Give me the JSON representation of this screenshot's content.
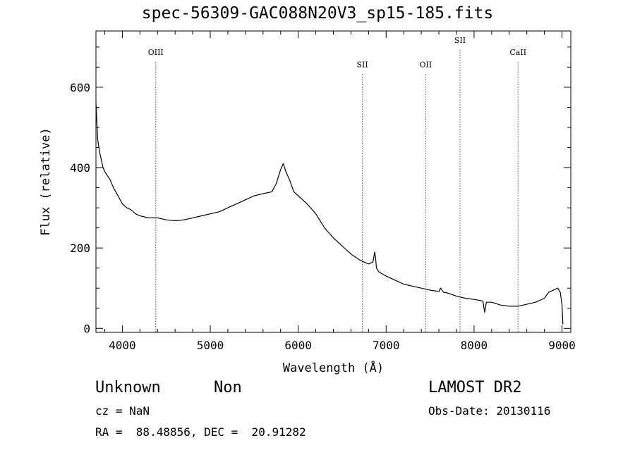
{
  "chart_data": {
    "type": "line",
    "title": "spec-56309-GAC088N20V3_sp15-185.fits",
    "xlabel": "Wavelength (Å)",
    "ylabel": "Flux (relative)",
    "xlim": [
      3700,
      9100
    ],
    "ylim": [
      -10,
      740
    ],
    "x_ticks": [
      4000,
      5000,
      6000,
      7000,
      8000,
      9000
    ],
    "y_ticks": [
      0,
      200,
      400,
      600
    ],
    "grid": false,
    "series": [
      {
        "color": "#000000",
        "x": [
          3700,
          3720,
          3740,
          3760,
          3780,
          3800,
          3830,
          3860,
          3900,
          3950,
          4000,
          4050,
          4100,
          4150,
          4200,
          4300,
          4400,
          4500,
          4600,
          4700,
          4800,
          4900,
          5000,
          5100,
          5200,
          5300,
          5400,
          5500,
          5600,
          5700,
          5750,
          5800,
          5830,
          5860,
          5900,
          5950,
          6000,
          6100,
          6200,
          6300,
          6400,
          6500,
          6600,
          6700,
          6800,
          6850,
          6870,
          6880,
          6890,
          6920,
          7000,
          7100,
          7200,
          7300,
          7400,
          7500,
          7600,
          7620,
          7650,
          7700,
          7800,
          7900,
          8000,
          8100,
          8120,
          8140,
          8200,
          8300,
          8400,
          8500,
          8600,
          8700,
          8800,
          8850,
          8900,
          8950,
          8980,
          9000,
          9010
        ],
        "y": [
          560,
          470,
          440,
          420,
          400,
          390,
          380,
          370,
          350,
          330,
          310,
          300,
          295,
          285,
          280,
          275,
          275,
          270,
          268,
          270,
          275,
          280,
          285,
          290,
          300,
          310,
          320,
          330,
          335,
          340,
          360,
          395,
          410,
          390,
          370,
          340,
          330,
          310,
          285,
          250,
          225,
          205,
          185,
          170,
          160,
          165,
          190,
          175,
          150,
          140,
          130,
          120,
          110,
          105,
          100,
          95,
          92,
          100,
          90,
          88,
          80,
          75,
          72,
          68,
          40,
          65,
          65,
          58,
          55,
          55,
          60,
          65,
          75,
          90,
          95,
          100,
          90,
          60,
          10
        ]
      }
    ],
    "annotations": [
      {
        "label": "OIII",
        "x": 4380,
        "y": 680
      },
      {
        "label": "SII",
        "x": 6730,
        "y": 650
      },
      {
        "label": "OII",
        "x": 7450,
        "y": 650
      },
      {
        "label": "SII",
        "x": 7840,
        "y": 710
      },
      {
        "label": "CaII",
        "x": 8500,
        "y": 680
      }
    ],
    "annotation_line_color": "#b03030"
  },
  "footer": {
    "object_class": "Unknown",
    "object_subclass": "Non",
    "survey": "LAMOST DR2",
    "redshift": "cz = NaN",
    "obs_date": "Obs-Date: 20130116",
    "coordinates": "RA =  88.48856, DEC =  20.91282"
  }
}
